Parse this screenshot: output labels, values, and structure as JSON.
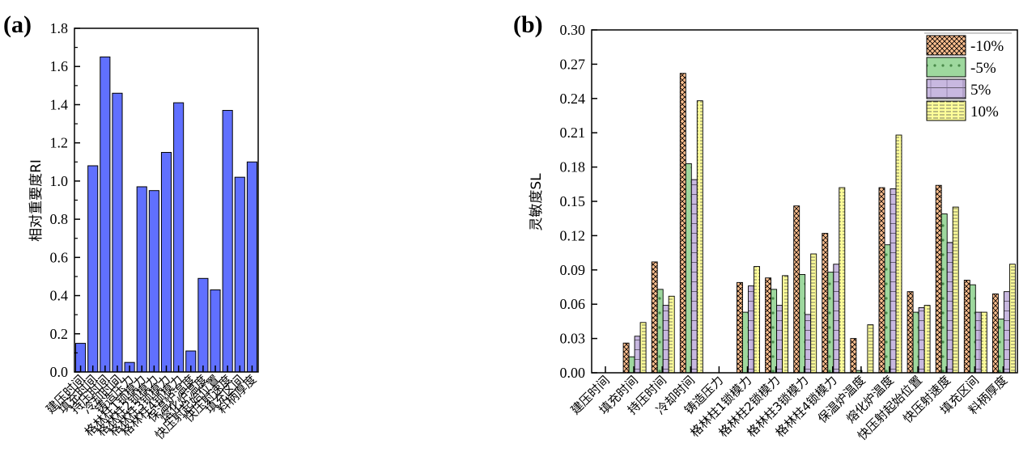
{
  "chart_data": [
    {
      "panel": "(a)",
      "type": "bar",
      "title": "",
      "xlabel": "",
      "ylabel": "相对重要度RI",
      "ylim": [
        0,
        1.8
      ],
      "yticks": [
        "0.0",
        "0.2",
        "0.4",
        "0.6",
        "0.8",
        "1.0",
        "1.2",
        "1.4",
        "1.6",
        "1.8"
      ],
      "ytick_values": [
        0,
        0.2,
        0.4,
        0.6,
        0.8,
        1.0,
        1.2,
        1.4,
        1.6,
        1.8
      ],
      "grid": false,
      "bar_color": "#6070ff",
      "categories": [
        "建压时间",
        "填充时间",
        "持压时间",
        "冷却时间",
        "铸造压力",
        "格林柱1锁模力",
        "格林柱2锁模力",
        "格林柱3锁模力",
        "格林柱4锁模力",
        "保温炉温度",
        "熔化炉温度",
        "快压射起始位置",
        "快压射速度",
        "填充区间",
        "料柄厚度"
      ],
      "values": [
        0.15,
        1.08,
        1.65,
        1.46,
        0.05,
        0.97,
        0.95,
        1.15,
        1.41,
        0.11,
        0.49,
        0.43,
        1.37,
        1.02,
        1.1
      ]
    },
    {
      "panel": "(b)",
      "type": "bar",
      "title": "",
      "xlabel": "",
      "ylabel": "灵敏度SL",
      "ylim": [
        0,
        0.3
      ],
      "yticks": [
        "0.00",
        "0.03",
        "0.06",
        "0.09",
        "0.12",
        "0.15",
        "0.18",
        "0.21",
        "0.24",
        "0.27",
        "0.30"
      ],
      "ytick_values": [
        0,
        0.03,
        0.06,
        0.09,
        0.12,
        0.15,
        0.18,
        0.21,
        0.24,
        0.27,
        0.3
      ],
      "grid": false,
      "legend_position": "top-right",
      "categories": [
        "建压时间",
        "填充时间",
        "持压时间",
        "冷却时间",
        "铸造压力",
        "格林柱1锁模力",
        "格林柱2锁模力",
        "格林柱3锁模力",
        "格林柱4锁模力",
        "保温炉温度",
        "熔化炉温度",
        "快压射起始位置",
        "快压射速度",
        "填充区间",
        "料柄厚度"
      ],
      "series": [
        {
          "name": "-10%",
          "color": "#ffc090",
          "pattern": "crosshatch",
          "values": [
            0,
            0.026,
            0.097,
            0.262,
            0,
            0.079,
            0.083,
            0.146,
            0.122,
            0.03,
            0.162,
            0.071,
            0.164,
            0.081,
            0.069
          ]
        },
        {
          "name": "-5%",
          "color": "#9ed89e",
          "pattern": "dots",
          "values": [
            0,
            0.014,
            0.073,
            0.183,
            0,
            0.053,
            0.073,
            0.086,
            0.088,
            0.002,
            0.112,
            0.053,
            0.139,
            0.077,
            0.047
          ]
        },
        {
          "name": "5%",
          "color": "#c8b8e0",
          "pattern": "grid",
          "values": [
            0,
            0.032,
            0.059,
            0.169,
            0,
            0.076,
            0.059,
            0.051,
            0.095,
            0,
            0.161,
            0.057,
            0.114,
            0.053,
            0.071
          ]
        },
        {
          "name": "10%",
          "color": "#ffff99",
          "pattern": "horizontal",
          "values": [
            0,
            0.044,
            0.067,
            0.238,
            0,
            0.093,
            0.085,
            0.104,
            0.162,
            0.042,
            0.208,
            0.059,
            0.145,
            0.053,
            0.095
          ]
        }
      ]
    }
  ]
}
